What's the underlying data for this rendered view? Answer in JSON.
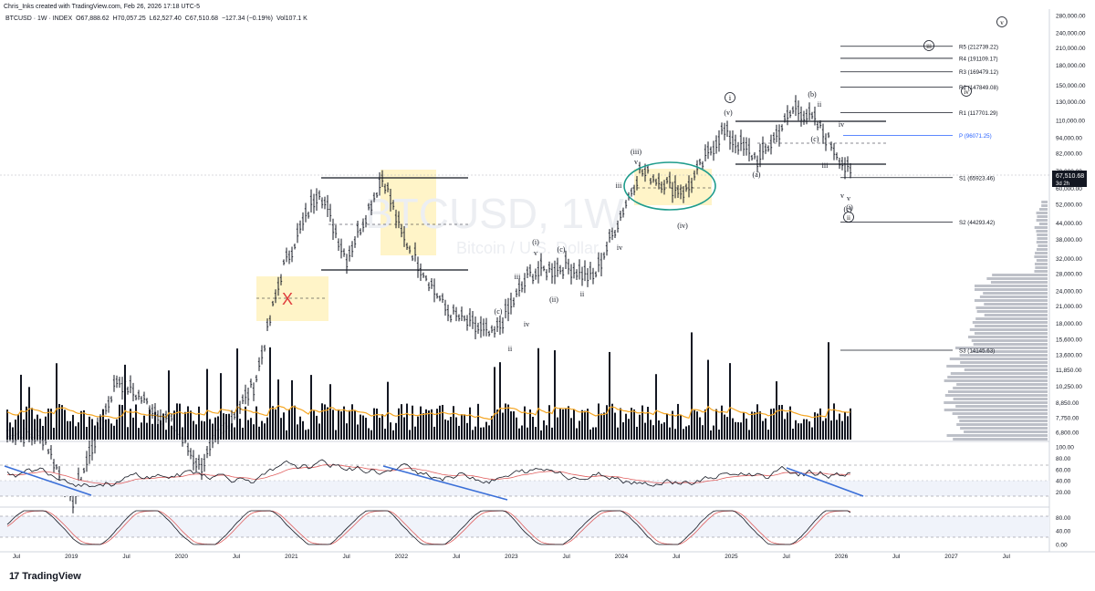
{
  "header": {
    "credit": "Chris_Inks created with TradingView.com, Feb 26, 2026 17:18 UTC-5"
  },
  "legend": {
    "symbol": "BTCUSD · 1W · INDEX",
    "open": "O67,888.62",
    "high": "H70,057.25",
    "low": "L62,527.40",
    "close": "C67,510.68",
    "change": "−127.34 (−0.19%)",
    "volume": "Vol107.1 K"
  },
  "watermark": {
    "symbol": "BTCUSD, 1W",
    "name": "Bitcoin / U.S. Dollar"
  },
  "brand": {
    "name": "TradingView",
    "logo": "17"
  },
  "colors": {
    "price_bar": "#131722",
    "volume_bar": "#131722",
    "ma": "#f5a623",
    "rsi": "#131722",
    "rsi_ma": "#e06060",
    "stoch_k": "#131722",
    "stoch_d": "#e06060",
    "trend": "#3a6fd8",
    "pivot_p": "#2962ff",
    "ellipse": "#1e9c8c",
    "highlight": "#fff4c8",
    "x_mark": "#e03c3c"
  },
  "chart_data": [
    {
      "type": "line",
      "title": "BTCUSD, 1W",
      "scale": "log",
      "y_ticks": [
        "280,000.00",
        "240,000.00",
        "210,000.00",
        "180,000.00",
        "150,000.00",
        "130,000.00",
        "110,000.00",
        "94,000.00",
        "82,000.00",
        "70,000.00",
        "60,000.00",
        "52,000.00",
        "44,000.00",
        "38,000.00",
        "32,000.00",
        "28,000.00",
        "24,000.00",
        "21,000.00",
        "18,000.00",
        "15,600.00",
        "13,600.00",
        "11,850.00",
        "10,250.00",
        "8,850.00",
        "7,750.00",
        "6,800.00"
      ],
      "x_ticks": [
        "Jul",
        "2019",
        "Jul",
        "2020",
        "Jul",
        "2021",
        "Jul",
        "2022",
        "Jul",
        "2023",
        "Jul",
        "2024",
        "Jul",
        "2025",
        "Jul",
        "2026",
        "Jul",
        "2027",
        "Jul"
      ],
      "last_price": {
        "value": 67510.68,
        "label": "67,510.68",
        "countdown": "3d 2h"
      },
      "series": [
        {
          "name": "",
          "x": [
            "2018-06",
            "2018-10",
            "2019-01",
            "2019-06",
            "2019-12",
            "2020-03",
            "2020-09",
            "2020-12",
            "2021-04",
            "2021-07",
            "2021-11",
            "2022-01",
            "2022-06",
            "2022-11",
            "2023-03",
            "2023-07",
            "2023-10",
            "2024-03",
            "2024-08",
            "2024-12",
            "2025-04",
            "2025-08",
            "2025-10",
            "2025-12",
            "2026-02"
          ],
          "values": [
            6700,
            6500,
            3600,
            11000,
            7300,
            5000,
            10500,
            29000,
            60000,
            32000,
            67000,
            40000,
            20000,
            16000,
            28000,
            30000,
            27000,
            70000,
            58000,
            100000,
            77000,
            124000,
            110000,
            88000,
            67510
          ]
        }
      ],
      "pivots": [
        {
          "label": "R5 (212739.22)",
          "value": 212739.22
        },
        {
          "label": "R4 (191109.17)",
          "value": 191109.17
        },
        {
          "label": "R3 (169479.12)",
          "value": 169479.12
        },
        {
          "label": "R2 (147849.08)",
          "value": 147849.08
        },
        {
          "label": "R1 (117701.29)",
          "value": 117701.29
        },
        {
          "label": "P (96071.25)",
          "value": 96071.25
        },
        {
          "label": "S1 (65923.46)",
          "value": 65923.46
        },
        {
          "label": "S2 (44293.42)",
          "value": 44293.42
        },
        {
          "label": "S3 (14145.63)",
          "value": 14145.63
        }
      ],
      "wave_labels": [
        "v",
        "iii",
        "iv",
        "ii",
        "i",
        "(v)",
        "(iii)",
        "(iv)",
        "(i)",
        "(ii)",
        "(a)",
        "(b)",
        "(c)",
        "i",
        "ii",
        "iii",
        "iv",
        "v",
        "ii",
        "iii",
        "iv",
        "v",
        "i",
        "X"
      ],
      "grid": false
    },
    {
      "type": "line",
      "title": "RSI",
      "ylim": [
        0,
        100
      ],
      "y_ticks": [
        "100.00",
        "80.00",
        "60.00",
        "40.00",
        "20.00"
      ],
      "levels": [
        70,
        50,
        30
      ]
    },
    {
      "type": "line",
      "title": "Stochastic RSI",
      "ylim": [
        0,
        100
      ],
      "y_ticks": [
        "80.00",
        "40.00",
        "0.00"
      ],
      "levels": [
        80,
        20
      ]
    }
  ]
}
